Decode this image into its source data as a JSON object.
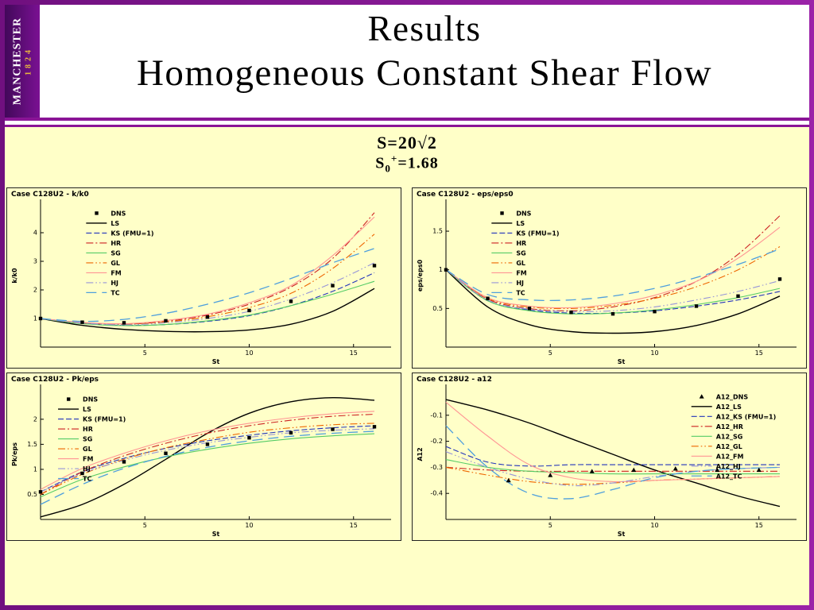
{
  "logo": {
    "name": "MANCHESTER",
    "year": "1824"
  },
  "header": {
    "title": "Results",
    "subtitle": "Homogeneous Constant Shear Flow"
  },
  "params": {
    "line1": "S=20√2",
    "line2_base": "S",
    "line2_sub": "0",
    "line2_sup": "+",
    "line2_rest": "=1.68"
  },
  "colors": {
    "frame": "#8a1596",
    "slide_bg": "#ffffc8",
    "band_bg": "#ffffff",
    "logo_bg": "#5a0e6e",
    "logo_year_gold": "#e8b93c"
  },
  "chart_data": [
    {
      "type": "line",
      "title": "Case C128U2 - k/k0",
      "xlabel": "St",
      "ylabel": "k/k0",
      "xlim": [
        0,
        16.8
      ],
      "ylim": [
        0,
        5
      ],
      "xticks": [
        5,
        10,
        15
      ],
      "yticks": [
        1,
        2,
        3,
        4
      ],
      "grid": false,
      "legend_xy": [
        0.13,
        0.03
      ],
      "x": [
        0,
        2,
        4,
        6,
        8,
        10,
        12,
        14,
        16
      ],
      "scatter": {
        "name": "DNS",
        "marker": "square",
        "color": "#000000",
        "x": [
          0,
          2,
          4,
          6,
          8,
          10,
          12,
          14,
          16
        ],
        "y": [
          1.0,
          0.87,
          0.85,
          0.92,
          1.05,
          1.28,
          1.6,
          2.15,
          2.85
        ]
      },
      "series": [
        {
          "name": "LS",
          "color": "#000000",
          "dash": "solid",
          "width": 1.4,
          "y": [
            1.0,
            0.76,
            0.62,
            0.55,
            0.54,
            0.6,
            0.8,
            1.25,
            2.05
          ]
        },
        {
          "name": "KS (FMU=1)",
          "color": "#2233bb",
          "dash": "dash",
          "y": [
            1.0,
            0.83,
            0.76,
            0.79,
            0.9,
            1.1,
            1.45,
            1.95,
            2.6
          ]
        },
        {
          "name": "HR",
          "color": "#cc2222",
          "dash": "dashdot",
          "y": [
            1.0,
            0.85,
            0.8,
            0.9,
            1.12,
            1.5,
            2.1,
            3.1,
            4.7
          ]
        },
        {
          "name": "SG",
          "color": "#55cc66",
          "dash": "solid",
          "y": [
            1.0,
            0.82,
            0.75,
            0.79,
            0.92,
            1.12,
            1.45,
            1.85,
            2.3
          ]
        },
        {
          "name": "GL",
          "color": "#ee6600",
          "dash": "dashdotdot",
          "y": [
            1.0,
            0.85,
            0.8,
            0.88,
            1.06,
            1.38,
            1.88,
            2.75,
            3.95
          ]
        },
        {
          "name": "FM",
          "color": "#ff9494",
          "dash": "solid",
          "y": [
            1.0,
            0.86,
            0.82,
            0.93,
            1.15,
            1.55,
            2.15,
            3.2,
            4.55
          ]
        },
        {
          "name": "HJ",
          "color": "#9694d8",
          "dash": "dashdotdot",
          "y": [
            1.0,
            0.84,
            0.78,
            0.85,
            1.0,
            1.25,
            1.68,
            2.25,
            2.95
          ]
        },
        {
          "name": "TC",
          "color": "#4e9fdd",
          "dash": "longdash",
          "width": 1.3,
          "y": [
            1.0,
            0.9,
            0.97,
            1.18,
            1.5,
            1.9,
            2.4,
            2.95,
            3.45
          ]
        }
      ]
    },
    {
      "type": "line",
      "title": "Case C128U2 - eps/eps0",
      "xlabel": "St",
      "ylabel": "eps/eps0",
      "xlim": [
        0,
        16.8
      ],
      "ylim": [
        0,
        1.85
      ],
      "xticks": [
        5,
        10,
        15
      ],
      "yticks": [
        0.5,
        1,
        1.5
      ],
      "grid": false,
      "legend_xy": [
        0.13,
        0.03
      ],
      "x": [
        0,
        2,
        4,
        6,
        8,
        10,
        12,
        14,
        16
      ],
      "scatter": {
        "name": "DNS",
        "marker": "square",
        "color": "#000000",
        "x": [
          0,
          2,
          4,
          6,
          8,
          10,
          12,
          14,
          16
        ],
        "y": [
          1.0,
          0.63,
          0.5,
          0.45,
          0.43,
          0.46,
          0.53,
          0.66,
          0.88
        ]
      },
      "series": [
        {
          "name": "LS",
          "color": "#000000",
          "dash": "solid",
          "width": 1.4,
          "y": [
            1.0,
            0.52,
            0.29,
            0.2,
            0.18,
            0.2,
            0.28,
            0.43,
            0.66
          ]
        },
        {
          "name": "KS (FMU=1)",
          "color": "#2233bb",
          "dash": "dash",
          "y": [
            1.0,
            0.6,
            0.48,
            0.44,
            0.44,
            0.47,
            0.53,
            0.61,
            0.72
          ]
        },
        {
          "name": "HR",
          "color": "#cc2222",
          "dash": "dashdot",
          "y": [
            1.0,
            0.62,
            0.5,
            0.47,
            0.52,
            0.64,
            0.85,
            1.2,
            1.7
          ]
        },
        {
          "name": "SG",
          "color": "#55cc66",
          "dash": "solid",
          "y": [
            1.0,
            0.6,
            0.47,
            0.43,
            0.44,
            0.48,
            0.55,
            0.64,
            0.76
          ]
        },
        {
          "name": "GL",
          "color": "#ee6600",
          "dash": "dashdotdot",
          "y": [
            1.0,
            0.63,
            0.52,
            0.5,
            0.54,
            0.63,
            0.78,
            1.0,
            1.3
          ]
        },
        {
          "name": "FM",
          "color": "#ff9494",
          "dash": "solid",
          "y": [
            1.0,
            0.64,
            0.53,
            0.51,
            0.56,
            0.67,
            0.85,
            1.15,
            1.55
          ]
        },
        {
          "name": "HJ",
          "color": "#9694d8",
          "dash": "dashdotdot",
          "y": [
            1.0,
            0.61,
            0.49,
            0.46,
            0.47,
            0.52,
            0.61,
            0.72,
            0.86
          ]
        },
        {
          "name": "TC",
          "color": "#4e9fdd",
          "dash": "longdash",
          "width": 1.3,
          "y": [
            1.0,
            0.68,
            0.61,
            0.61,
            0.66,
            0.76,
            0.9,
            1.07,
            1.27
          ]
        }
      ]
    },
    {
      "type": "line",
      "title": "Case C128U2 - Pk/eps",
      "xlabel": "St",
      "ylabel": "Pk/eps",
      "xlim": [
        0,
        16.8
      ],
      "ylim": [
        0,
        2.6
      ],
      "xticks": [
        5,
        10,
        15
      ],
      "yticks": [
        0.5,
        1,
        1.5,
        2
      ],
      "grid": false,
      "legend_xy": [
        0.05,
        0.04
      ],
      "x": [
        0,
        2,
        4,
        6,
        8,
        10,
        12,
        14,
        16
      ],
      "scatter": {
        "name": "DNS",
        "marker": "square",
        "color": "#000000",
        "x": [
          0,
          2,
          4,
          6,
          8,
          10,
          12,
          14,
          16
        ],
        "y": [
          0.55,
          0.92,
          1.15,
          1.32,
          1.5,
          1.63,
          1.73,
          1.8,
          1.85
        ]
      },
      "series": [
        {
          "name": "LS",
          "color": "#000000",
          "dash": "solid",
          "width": 1.4,
          "y": [
            0.05,
            0.3,
            0.7,
            1.2,
            1.72,
            2.12,
            2.35,
            2.43,
            2.38
          ]
        },
        {
          "name": "KS (FMU=1)",
          "color": "#2233bb",
          "dash": "dash",
          "y": [
            0.55,
            0.95,
            1.22,
            1.42,
            1.57,
            1.68,
            1.77,
            1.83,
            1.87
          ]
        },
        {
          "name": "HR",
          "color": "#cc2222",
          "dash": "dashdot",
          "y": [
            0.5,
            0.95,
            1.27,
            1.52,
            1.72,
            1.87,
            1.98,
            2.06,
            2.1
          ]
        },
        {
          "name": "SG",
          "color": "#55cc66",
          "dash": "solid",
          "y": [
            0.45,
            0.8,
            1.05,
            1.25,
            1.4,
            1.52,
            1.61,
            1.67,
            1.71
          ]
        },
        {
          "name": "GL",
          "color": "#ee6600",
          "dash": "dashdotdot",
          "y": [
            0.5,
            0.9,
            1.2,
            1.43,
            1.6,
            1.74,
            1.83,
            1.89,
            1.92
          ]
        },
        {
          "name": "FM",
          "color": "#ff9494",
          "dash": "solid",
          "y": [
            0.6,
            1.02,
            1.32,
            1.57,
            1.77,
            1.92,
            2.03,
            2.11,
            2.16
          ]
        },
        {
          "name": "HJ",
          "color": "#9694d8",
          "dash": "dashdotdot",
          "y": [
            0.55,
            0.92,
            1.18,
            1.38,
            1.53,
            1.64,
            1.73,
            1.78,
            1.81
          ]
        },
        {
          "name": "TC",
          "color": "#4e9fdd",
          "dash": "longdash",
          "width": 1.3,
          "y": [
            0.3,
            0.7,
            1.02,
            1.26,
            1.44,
            1.57,
            1.66,
            1.72,
            1.76
          ]
        }
      ]
    },
    {
      "type": "line",
      "title": "Case C128U2 - a12",
      "xlabel": "St",
      "ylabel": "A12",
      "xlim": [
        0,
        16.8
      ],
      "ylim": [
        -0.5,
        0
      ],
      "xticks": [
        5,
        10,
        15
      ],
      "yticks": [
        -0.4,
        -0.3,
        -0.2,
        -0.1
      ],
      "grid": false,
      "legend_xy": [
        0.7,
        0.02
      ],
      "x": [
        0,
        2,
        4,
        6,
        8,
        10,
        12,
        14,
        16
      ],
      "scatter": {
        "name": "A12_DNS",
        "marker": "triangle",
        "color": "#000000",
        "x": [
          3,
          5,
          7,
          9,
          11,
          13,
          15
        ],
        "y": [
          -0.35,
          -0.33,
          -0.315,
          -0.31,
          -0.305,
          -0.31,
          -0.31
        ]
      },
      "series": [
        {
          "name": "A12_LS",
          "color": "#000000",
          "dash": "solid",
          "width": 1.4,
          "y": [
            -0.04,
            -0.08,
            -0.13,
            -0.19,
            -0.25,
            -0.31,
            -0.36,
            -0.41,
            -0.45
          ]
        },
        {
          "name": "A12_KS (FMU=1)",
          "color": "#2233bb",
          "dash": "dash",
          "y": [
            -0.22,
            -0.28,
            -0.295,
            -0.29,
            -0.29,
            -0.29,
            -0.29,
            -0.29,
            -0.29
          ]
        },
        {
          "name": "A12_HR",
          "color": "#cc2222",
          "dash": "dashdot",
          "y": [
            -0.3,
            -0.31,
            -0.315,
            -0.315,
            -0.315,
            -0.315,
            -0.315,
            -0.315,
            -0.315
          ]
        },
        {
          "name": "A12_SG",
          "color": "#55cc66",
          "dash": "solid",
          "y": [
            -0.27,
            -0.3,
            -0.315,
            -0.32,
            -0.325,
            -0.325,
            -0.325,
            -0.325,
            -0.325
          ]
        },
        {
          "name": "A12_GL",
          "color": "#ee6600",
          "dash": "dashdotdot",
          "y": [
            -0.3,
            -0.33,
            -0.355,
            -0.365,
            -0.36,
            -0.35,
            -0.345,
            -0.34,
            -0.335
          ]
        },
        {
          "name": "A12_FM",
          "color": "#ff9494",
          "dash": "solid",
          "y": [
            -0.05,
            -0.18,
            -0.29,
            -0.34,
            -0.355,
            -0.35,
            -0.345,
            -0.34,
            -0.335
          ]
        },
        {
          "name": "A12_HJ",
          "color": "#9694d8",
          "dash": "dashdotdot",
          "y": [
            -0.24,
            -0.3,
            -0.345,
            -0.37,
            -0.36,
            -0.335,
            -0.315,
            -0.305,
            -0.3
          ]
        },
        {
          "name": "A12_TC",
          "color": "#4e9fdd",
          "dash": "longdash",
          "width": 1.3,
          "y": [
            -0.14,
            -0.3,
            -0.4,
            -0.42,
            -0.385,
            -0.34,
            -0.315,
            -0.305,
            -0.3
          ]
        }
      ]
    }
  ]
}
